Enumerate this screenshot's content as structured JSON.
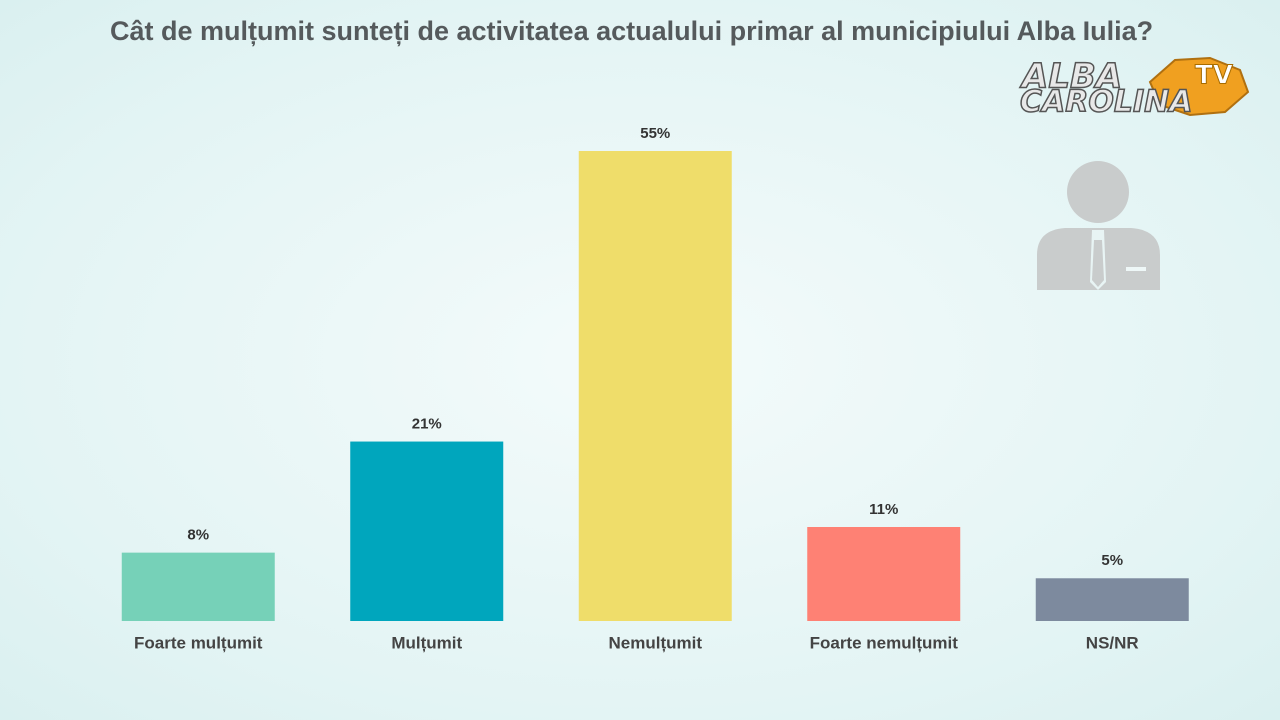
{
  "chart_data": {
    "type": "bar",
    "title": "Cât de mulțumit sunteți de activitatea actualului primar al municipiului Alba Iulia?",
    "categories": [
      "Foarte mulțumit",
      "Mulțumit",
      "Nemulțumit",
      "Foarte nemulțumit",
      "NS/NR"
    ],
    "values": [
      8,
      21,
      55,
      11,
      5
    ],
    "value_labels": [
      "8%",
      "21%",
      "55%",
      "11%",
      "5%"
    ],
    "colors": [
      "#76d1b8",
      "#00a6bd",
      "#efdd6a",
      "#fe8174",
      "#7d8a9e"
    ]
  },
  "logo": {
    "line1": "ALBA",
    "line2": "CAROLINA",
    "badge": "TV"
  }
}
